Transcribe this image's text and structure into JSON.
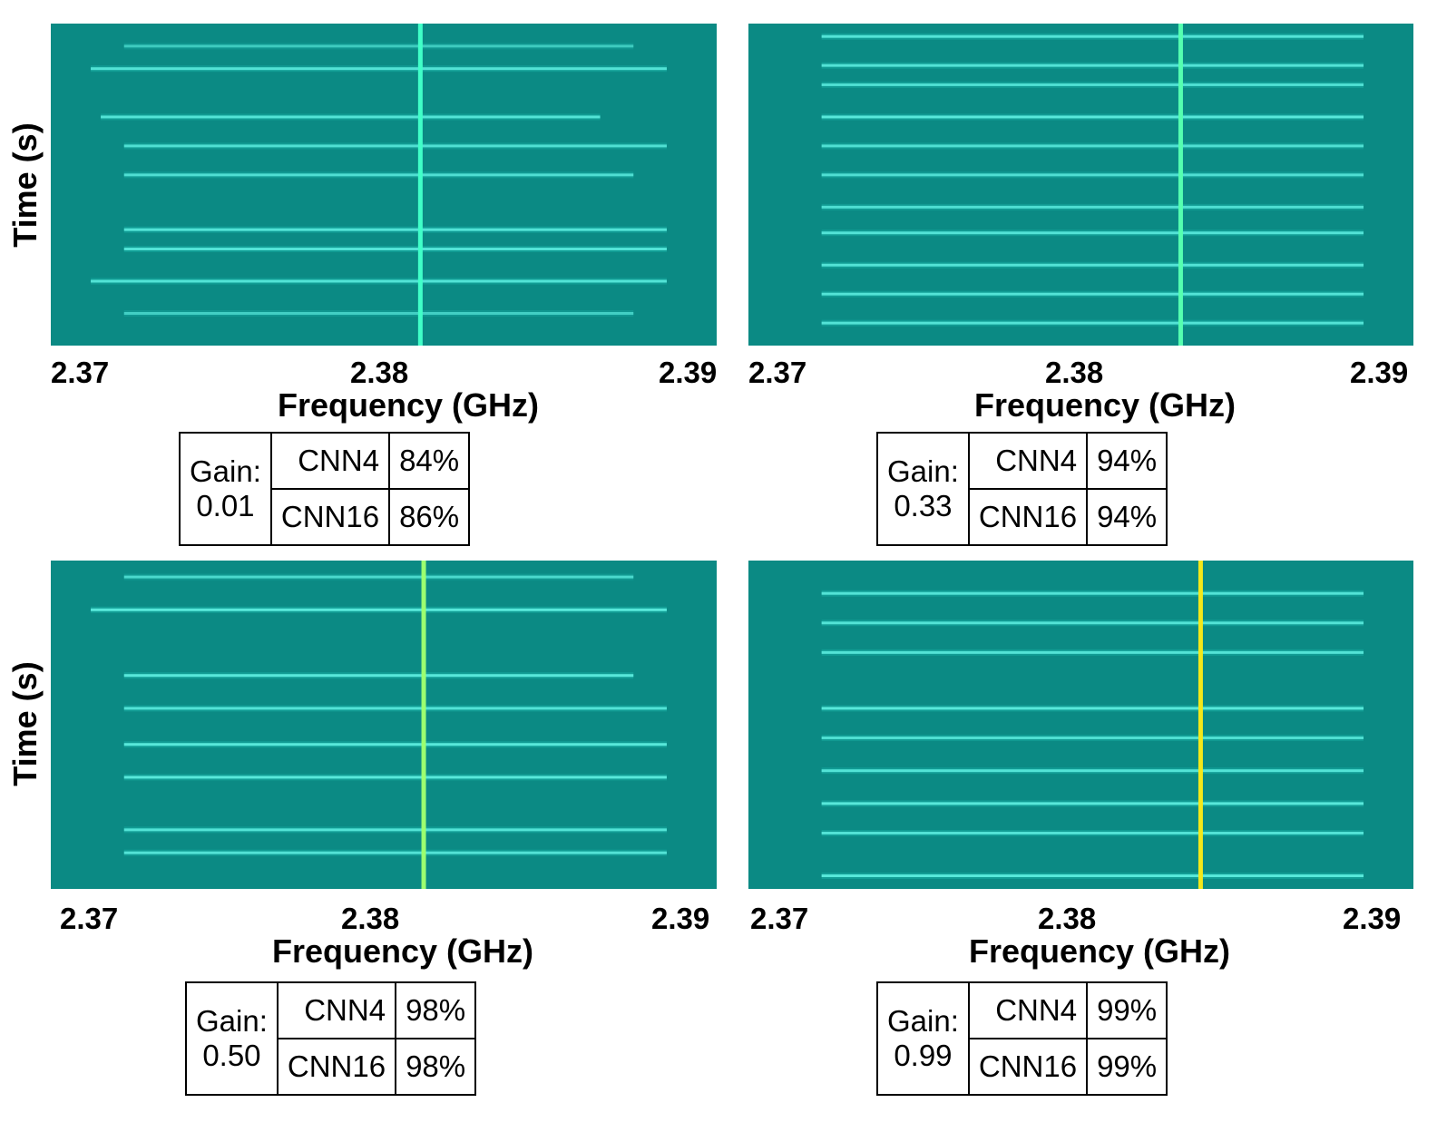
{
  "chart_data": [
    {
      "type": "heatmap",
      "title": "",
      "xlabel": "Frequency (GHz)",
      "ylabel": "Time (s)",
      "xticks": [
        "2.37",
        "2.38",
        "2.39"
      ],
      "xlim": [
        2.37,
        2.39
      ],
      "center_line_ghz": 2.3811,
      "center_line_color": "#40ffc8",
      "bursts": [
        {
          "t": 0.07,
          "f_start": 2.3722,
          "f_end": 2.3875,
          "strength": 0.55
        },
        {
          "t": 0.14,
          "f_start": 2.3712,
          "f_end": 2.3885,
          "strength": 0.8
        },
        {
          "t": 0.29,
          "f_start": 2.3715,
          "f_end": 2.3865,
          "strength": 0.8
        },
        {
          "t": 0.38,
          "f_start": 2.3722,
          "f_end": 2.3885,
          "strength": 0.75
        },
        {
          "t": 0.47,
          "f_start": 2.3722,
          "f_end": 2.3875,
          "strength": 0.75
        },
        {
          "t": 0.64,
          "f_start": 2.3722,
          "f_end": 2.3885,
          "strength": 0.8
        },
        {
          "t": 0.7,
          "f_start": 2.3722,
          "f_end": 2.3885,
          "strength": 0.8
        },
        {
          "t": 0.8,
          "f_start": 2.3712,
          "f_end": 2.3885,
          "strength": 0.8
        },
        {
          "t": 0.9,
          "f_start": 2.3722,
          "f_end": 2.3875,
          "strength": 0.6
        }
      ],
      "gain_label": "Gain: 0.01",
      "accuracy": [
        {
          "model": "CNN4",
          "value": "84%"
        },
        {
          "model": "CNN16",
          "value": "86%"
        }
      ]
    },
    {
      "type": "heatmap",
      "title": "",
      "xlabel": "Frequency (GHz)",
      "ylabel": "",
      "xticks": [
        "2.37",
        "2.38",
        "2.39"
      ],
      "xlim": [
        2.37,
        2.39
      ],
      "center_line_ghz": 2.383,
      "center_line_color": "#55ffb0",
      "bursts": [
        {
          "t": 0.04,
          "f_start": 2.3722,
          "f_end": 2.3885,
          "strength": 0.8
        },
        {
          "t": 0.13,
          "f_start": 2.3722,
          "f_end": 2.3885,
          "strength": 0.8
        },
        {
          "t": 0.19,
          "f_start": 2.3722,
          "f_end": 2.3885,
          "strength": 0.75
        },
        {
          "t": 0.29,
          "f_start": 2.3722,
          "f_end": 2.3885,
          "strength": 0.85
        },
        {
          "t": 0.38,
          "f_start": 2.3722,
          "f_end": 2.3885,
          "strength": 0.75
        },
        {
          "t": 0.47,
          "f_start": 2.3722,
          "f_end": 2.3885,
          "strength": 0.75
        },
        {
          "t": 0.57,
          "f_start": 2.3722,
          "f_end": 2.3885,
          "strength": 0.75
        },
        {
          "t": 0.65,
          "f_start": 2.3722,
          "f_end": 2.3885,
          "strength": 0.8
        },
        {
          "t": 0.75,
          "f_start": 2.3722,
          "f_end": 2.3885,
          "strength": 0.8
        },
        {
          "t": 0.84,
          "f_start": 2.3722,
          "f_end": 2.3885,
          "strength": 0.8
        },
        {
          "t": 0.93,
          "f_start": 2.3722,
          "f_end": 2.3885,
          "strength": 0.8
        }
      ],
      "gain_label": "Gain: 0.33",
      "accuracy": [
        {
          "model": "CNN4",
          "value": "94%"
        },
        {
          "model": "CNN16",
          "value": "94%"
        }
      ]
    },
    {
      "type": "heatmap",
      "title": "",
      "xlabel": "Frequency (GHz)",
      "ylabel": "Time (s)",
      "xticks": [
        "2.37",
        "2.38",
        "2.39"
      ],
      "xlim": [
        2.37,
        2.39
      ],
      "center_line_ghz": 2.3812,
      "center_line_color": "#9cff70",
      "bursts": [
        {
          "t": 0.05,
          "f_start": 2.3722,
          "f_end": 2.3875,
          "strength": 0.7
        },
        {
          "t": 0.15,
          "f_start": 2.3712,
          "f_end": 2.3885,
          "strength": 0.85
        },
        {
          "t": 0.35,
          "f_start": 2.3722,
          "f_end": 2.3875,
          "strength": 0.85
        },
        {
          "t": 0.45,
          "f_start": 2.3722,
          "f_end": 2.3885,
          "strength": 0.8
        },
        {
          "t": 0.56,
          "f_start": 2.3722,
          "f_end": 2.3885,
          "strength": 0.85
        },
        {
          "t": 0.66,
          "f_start": 2.3722,
          "f_end": 2.3885,
          "strength": 0.85
        },
        {
          "t": 0.82,
          "f_start": 2.3722,
          "f_end": 2.3885,
          "strength": 0.8
        },
        {
          "t": 0.89,
          "f_start": 2.3722,
          "f_end": 2.3885,
          "strength": 0.8
        }
      ],
      "gain_label": "Gain: 0.50",
      "accuracy": [
        {
          "model": "CNN4",
          "value": "98%"
        },
        {
          "model": "CNN16",
          "value": "98%"
        }
      ]
    },
    {
      "type": "heatmap",
      "title": "",
      "xlabel": "Frequency (GHz)",
      "ylabel": "",
      "xticks": [
        "2.37",
        "2.38",
        "2.39"
      ],
      "xlim": [
        2.37,
        2.39
      ],
      "center_line_ghz": 2.3836,
      "center_line_color": "#f2e81a",
      "bursts": [
        {
          "t": 0.1,
          "f_start": 2.3722,
          "f_end": 2.3885,
          "strength": 0.8
        },
        {
          "t": 0.19,
          "f_start": 2.3722,
          "f_end": 2.3885,
          "strength": 0.8
        },
        {
          "t": 0.28,
          "f_start": 2.3722,
          "f_end": 2.3885,
          "strength": 0.8
        },
        {
          "t": 0.45,
          "f_start": 2.3722,
          "f_end": 2.3885,
          "strength": 0.85
        },
        {
          "t": 0.54,
          "f_start": 2.3722,
          "f_end": 2.3885,
          "strength": 0.75
        },
        {
          "t": 0.64,
          "f_start": 2.3722,
          "f_end": 2.3885,
          "strength": 0.8
        },
        {
          "t": 0.74,
          "f_start": 2.3722,
          "f_end": 2.3885,
          "strength": 0.85
        },
        {
          "t": 0.83,
          "f_start": 2.3722,
          "f_end": 2.3885,
          "strength": 0.8
        },
        {
          "t": 0.96,
          "f_start": 2.3722,
          "f_end": 2.3885,
          "strength": 0.85
        }
      ],
      "gain_label": "Gain: 0.99",
      "accuracy": [
        {
          "model": "CNN4",
          "value": "99%"
        },
        {
          "model": "CNN16",
          "value": "99%"
        }
      ]
    }
  ],
  "colors": {
    "background": "#0b8a84",
    "burst": "#2ee6d6",
    "burst_core": "#6dfff0"
  }
}
